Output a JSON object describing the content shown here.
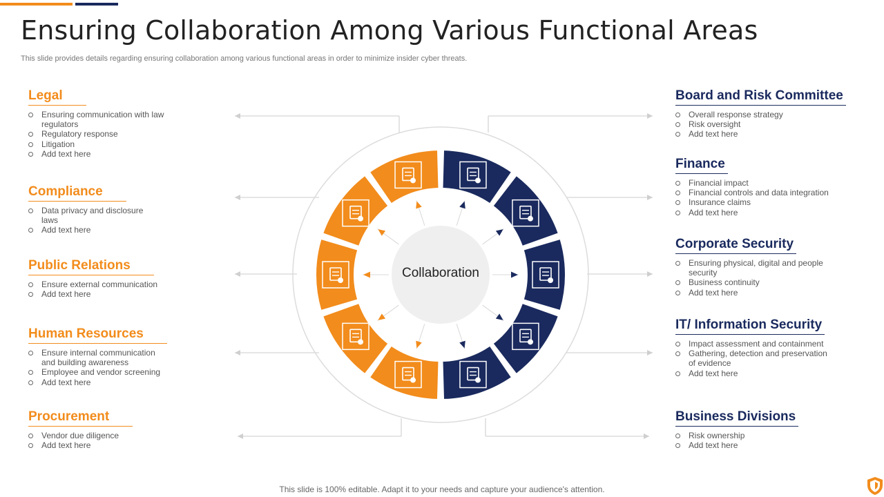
{
  "title": "Ensuring Collaboration Among Various Functional Areas",
  "subtitle": "This slide provides details regarding ensuring collaboration among various functional areas in order to minimize insider cyber threats.",
  "center_label": "Collaboration",
  "footer": "This slide is 100% editable. Adapt it to your needs and capture your audience's attention.",
  "colors": {
    "orange": "#f28c1c",
    "navy": "#1a2a5e",
    "line": "#d5d5d5",
    "center": "#efefef"
  },
  "left_sections": [
    {
      "title": "Legal",
      "items": [
        "Ensuring communication with law regulators",
        "Regulatory response",
        "Litigation",
        "Add text here"
      ]
    },
    {
      "title": "Compliance",
      "items": [
        "Data privacy and disclosure laws",
        "Add text here"
      ]
    },
    {
      "title": "Public Relations",
      "items": [
        "Ensure external communication",
        "Add text here"
      ]
    },
    {
      "title": "Human Resources",
      "items": [
        "Ensure internal communication and building awareness",
        "Employee and vendor screening",
        "Add text here"
      ]
    },
    {
      "title": "Procurement",
      "items": [
        "Vendor due diligence",
        "Add text here"
      ]
    }
  ],
  "right_sections": [
    {
      "title": "Board and Risk Committee",
      "items": [
        "Overall response strategy",
        "Risk oversight",
        "Add text here"
      ]
    },
    {
      "title": "Finance",
      "items": [
        "Financial impact",
        "Financial controls and data integration",
        "Insurance claims",
        "Add text here"
      ]
    },
    {
      "title": "Corporate Security",
      "items": [
        "Ensuring physical, digital and people security",
        "Business continuity",
        "Add text here"
      ]
    },
    {
      "title": "IT/ Information Security",
      "items": [
        "Impact assessment and containment",
        "Gathering, detection and preservation of evidence",
        "Add text here"
      ]
    },
    {
      "title": "Business Divisions",
      "items": [
        "Risk ownership",
        "Add text here"
      ]
    }
  ],
  "icons": {
    "left": [
      "clipboard-shield-icon",
      "clipboard-warning-icon",
      "chat-building-icon",
      "people-gears-icon",
      "box-hand-icon"
    ],
    "right": [
      "committee-people-icon",
      "presentation-chart-icon",
      "building-lock-icon",
      "shield-alert-icon",
      "network-people-icon"
    ]
  }
}
